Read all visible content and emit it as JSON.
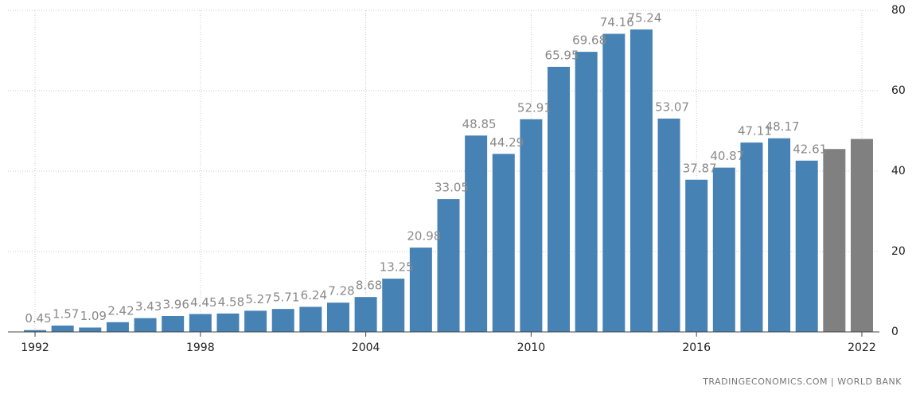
{
  "chart_data": {
    "type": "bar",
    "source": "TRADINGECONOMICS.COM | WORLD BANK",
    "x": [
      1992,
      1993,
      1994,
      1995,
      1996,
      1997,
      1998,
      1999,
      2000,
      2001,
      2002,
      2003,
      2004,
      2005,
      2006,
      2007,
      2008,
      2009,
      2010,
      2011,
      2012,
      2013,
      2014,
      2015,
      2016,
      2017,
      2018,
      2019,
      2020,
      2021,
      2022
    ],
    "series": [
      {
        "color": "#4682b4",
        "labels": true,
        "values": [
          0.45,
          1.57,
          1.09,
          2.42,
          3.43,
          3.96,
          4.45,
          4.58,
          5.27,
          5.71,
          6.24,
          7.28,
          8.68,
          13.25,
          20.98,
          33.05,
          48.85,
          44.29,
          52.91,
          65.95,
          69.68,
          74.16,
          75.24,
          53.07,
          37.87,
          40.87,
          47.11,
          48.17,
          42.61,
          null,
          null
        ]
      },
      {
        "color": "#808080",
        "labels": false,
        "values": [
          null,
          null,
          null,
          null,
          null,
          null,
          null,
          null,
          null,
          null,
          null,
          null,
          null,
          null,
          null,
          null,
          null,
          null,
          null,
          null,
          null,
          null,
          null,
          null,
          null,
          null,
          null,
          null,
          null,
          45.5,
          48.0
        ]
      }
    ],
    "xlim": [
      1991,
      2023
    ],
    "xticks": [
      1992,
      1998,
      2004,
      2010,
      2016,
      2022
    ],
    "ylim": [
      0,
      80
    ],
    "yticks": [
      0,
      20,
      40,
      60,
      80
    ],
    "grid": true
  }
}
